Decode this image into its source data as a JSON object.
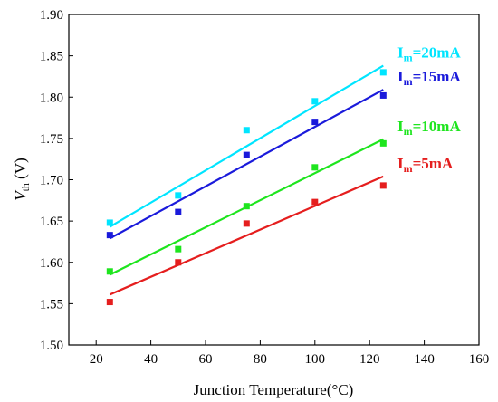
{
  "chart_data": {
    "type": "scatter",
    "xlabel": "Junction Temperature(°C)",
    "ylabel_main": "V",
    "ylabel_sub": "th",
    "ylabel_unit": " (V)",
    "xlim": [
      10,
      160
    ],
    "ylim": [
      1.5,
      1.9
    ],
    "xticks": [
      "20",
      "40",
      "60",
      "80",
      "100",
      "120",
      "140",
      "160"
    ],
    "yticks": [
      "1.50",
      "1.55",
      "1.60",
      "1.65",
      "1.70",
      "1.75",
      "1.80",
      "1.85",
      "1.90"
    ],
    "grid": false,
    "series": [
      {
        "name": "Im=20mA",
        "label_main": "I",
        "label_sub": "m",
        "label_rest": "=20mA",
        "color": "#00e5ff",
        "x": [
          25,
          50,
          75,
          100,
          125
        ],
        "y": [
          1.648,
          1.681,
          1.76,
          1.795,
          1.83
        ],
        "fit": [
          [
            25,
            1.643
          ],
          [
            125,
            1.838
          ]
        ]
      },
      {
        "name": "Im=15mA",
        "label_main": "I",
        "label_sub": "m",
        "label_rest": "=15mA",
        "color": "#1a1adb",
        "x": [
          25,
          50,
          75,
          100,
          125
        ],
        "y": [
          1.633,
          1.661,
          1.73,
          1.77,
          1.802
        ],
        "fit": [
          [
            25,
            1.629
          ],
          [
            125,
            1.809
          ]
        ]
      },
      {
        "name": "Im=10mA",
        "label_main": "I",
        "label_sub": "m",
        "label_rest": "=10mA",
        "color": "#1ee51e",
        "x": [
          25,
          50,
          75,
          100,
          125
        ],
        "y": [
          1.589,
          1.616,
          1.668,
          1.715,
          1.744
        ],
        "fit": [
          [
            25,
            1.585
          ],
          [
            125,
            1.749
          ]
        ]
      },
      {
        "name": "Im=5mA",
        "label_main": "I",
        "label_sub": "m",
        "label_rest": "=5mA",
        "color": "#e51e1e",
        "x": [
          25,
          50,
          75,
          100,
          125
        ],
        "y": [
          1.552,
          1.6,
          1.647,
          1.673,
          1.693
        ],
        "fit": [
          [
            25,
            1.561
          ],
          [
            125,
            1.704
          ]
        ]
      }
    ]
  }
}
